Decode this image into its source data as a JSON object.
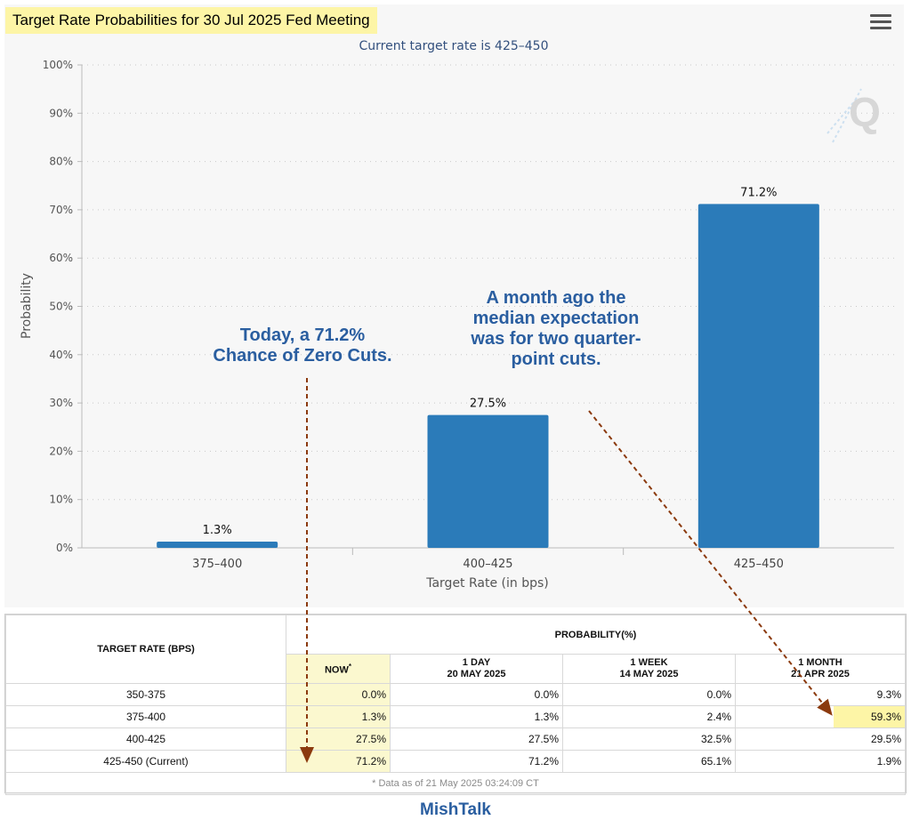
{
  "title": "Target Rate Probabilities for 30 Jul 2025 Fed Meeting",
  "subtitle": "Current target rate is 425–450",
  "chart_data": {
    "type": "bar",
    "categories": [
      "375–400",
      "400–425",
      "425–450"
    ],
    "values": [
      1.3,
      27.5,
      71.2
    ],
    "value_labels": [
      "1.3%",
      "27.5%",
      "71.2%"
    ],
    "title": "Target Rate Probabilities for 30 Jul 2025 Fed Meeting",
    "subtitle": "Current target rate is 425–450",
    "xlabel": "Target Rate (in bps)",
    "ylabel": "Probability",
    "ylim": [
      0,
      100
    ],
    "yticks": [
      "0%",
      "10%",
      "20%",
      "30%",
      "40%",
      "50%",
      "60%",
      "70%",
      "80%",
      "90%",
      "100%"
    ],
    "grid": true,
    "bar_color": "#2b7bb9"
  },
  "annotations": {
    "today_line1": "Today, a 71.2%",
    "today_line2": "Chance of Zero Cuts.",
    "month_line1": "A month ago the",
    "month_line2": "median expectation",
    "month_line3": "was for two quarter-",
    "month_line4": "point cuts.",
    "text_color": "#2a5ea0",
    "arrow_color": "#8b3a0e"
  },
  "table": {
    "rate_header": "TARGET RATE (BPS)",
    "prob_header": "PROBABILITY(%)",
    "col_now": "NOW",
    "col_now_mark": "*",
    "col_1day_a": "1 DAY",
    "col_1day_b": "20 MAY 2025",
    "col_1week_a": "1 WEEK",
    "col_1week_b": "14 MAY 2025",
    "col_1month_a": "1 MONTH",
    "col_1month_b": "21 APR 2025",
    "rows": [
      {
        "rate": "350-375",
        "now": "0.0%",
        "day": "0.0%",
        "week": "0.0%",
        "month": "9.3%"
      },
      {
        "rate": "375-400",
        "now": "1.3%",
        "day": "1.3%",
        "week": "2.4%",
        "month": "59.3%"
      },
      {
        "rate": "400-425",
        "now": "27.5%",
        "day": "27.5%",
        "week": "32.5%",
        "month": "29.5%"
      },
      {
        "rate": "425-450 (Current)",
        "now": "71.2%",
        "day": "71.2%",
        "week": "65.1%",
        "month": "1.9%"
      }
    ],
    "footnote": "* Data as of 21 May 2025 03:24:09 CT"
  },
  "brand": "MishTalk",
  "colors": {
    "highlight": "#fdf5a6",
    "now_column": "#fbf8cf",
    "panel_bg": "#f7f7f7"
  },
  "icons": {
    "menu": "hamburger-menu-icon",
    "watermark": "quikstrike-q-logo"
  }
}
